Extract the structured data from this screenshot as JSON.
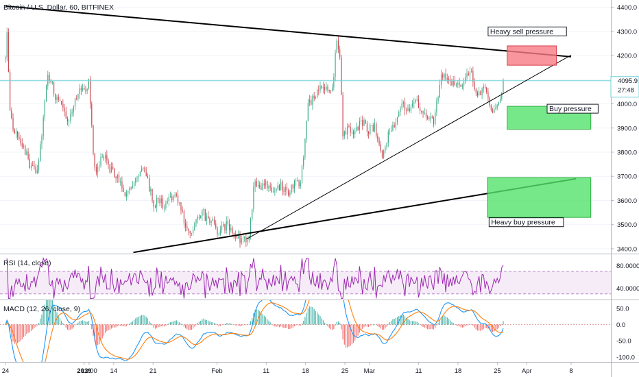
{
  "chart_data": [
    {
      "type": "candlestick",
      "title": "Bitcoin / U.S. Dollar, 60, BITFINEX",
      "ylim": [
        3380,
        4430
      ],
      "y_ticks": [
        "4400.0",
        "4300.0",
        "4200.0",
        "4100.0",
        "4000.0",
        "3900.0",
        "3800.0",
        "3700.0",
        "3600.0",
        "3500.0",
        "3400.0"
      ],
      "last_price": "4095.9",
      "countdown": "27:48",
      "colors": {
        "up": "#3fae8a",
        "down": "#c94a52",
        "last_line": "#6fd2d8",
        "trendline": "#000000"
      },
      "anchors": [
        {
          "t": 0,
          "p": 4210
        },
        {
          "t": 0.05,
          "p": 4380
        },
        {
          "t": 0.5,
          "p": 3940
        },
        {
          "t": 2.5,
          "p": 3760
        },
        {
          "t": 3.2,
          "p": 3700
        },
        {
          "t": 4.3,
          "p": 4120
        },
        {
          "t": 6.3,
          "p": 3920
        },
        {
          "t": 7.5,
          "p": 4060
        },
        {
          "t": 8.5,
          "p": 4080
        },
        {
          "t": 9.0,
          "p": 3720
        },
        {
          "t": 10.0,
          "p": 3780
        },
        {
          "t": 12.5,
          "p": 3620
        },
        {
          "t": 14.0,
          "p": 3740
        },
        {
          "t": 15.2,
          "p": 3580
        },
        {
          "t": 17.5,
          "p": 3620
        },
        {
          "t": 18.5,
          "p": 3450
        },
        {
          "t": 20.0,
          "p": 3560
        },
        {
          "t": 21.5,
          "p": 3480
        },
        {
          "t": 23.0,
          "p": 3490
        },
        {
          "t": 24.0,
          "p": 3420
        },
        {
          "t": 24.8,
          "p": 3470
        },
        {
          "t": 25.3,
          "p": 3660
        },
        {
          "t": 27.5,
          "p": 3650
        },
        {
          "t": 29.0,
          "p": 3650
        },
        {
          "t": 30.0,
          "p": 3680
        },
        {
          "t": 30.8,
          "p": 4000
        },
        {
          "t": 32.0,
          "p": 4060
        },
        {
          "t": 33.3,
          "p": 4080
        },
        {
          "t": 33.7,
          "p": 4260
        },
        {
          "t": 34.0,
          "p": 4200
        },
        {
          "t": 34.3,
          "p": 3870
        },
        {
          "t": 36.0,
          "p": 3910
        },
        {
          "t": 37.5,
          "p": 3900
        },
        {
          "t": 38.3,
          "p": 3800
        },
        {
          "t": 40.0,
          "p": 3980
        },
        {
          "t": 42.0,
          "p": 3990
        },
        {
          "t": 43.5,
          "p": 3920
        },
        {
          "t": 44.3,
          "p": 4120
        },
        {
          "t": 46.0,
          "p": 4080
        },
        {
          "t": 47.3,
          "p": 4120
        },
        {
          "t": 48.0,
          "p": 4050
        },
        {
          "t": 49.0,
          "p": 4040
        },
        {
          "t": 49.6,
          "p": 3960
        },
        {
          "t": 50.3,
          "p": 4000
        },
        {
          "t": 50.6,
          "p": 4096
        }
      ],
      "x_axis": {
        "start": "2018-12-24",
        "ticks": [
          {
            "t": 0,
            "label": "24",
            "bold": false
          },
          {
            "t": 8,
            "label": "2019",
            "bold": true
          },
          {
            "t": 8.5,
            "label": "13:00",
            "bold": false
          },
          {
            "t": 11,
            "label": "14",
            "bold": false
          },
          {
            "t": 15,
            "label": "21",
            "bold": false
          },
          {
            "t": 21.5,
            "label": "Feb",
            "bold": false
          },
          {
            "t": 26.5,
            "label": "11",
            "bold": false
          },
          {
            "t": 30.5,
            "label": "18",
            "bold": false
          },
          {
            "t": 34.5,
            "label": "25",
            "bold": false
          },
          {
            "t": 37,
            "label": "Mar",
            "bold": false
          },
          {
            "t": 42,
            "label": "11",
            "bold": false
          },
          {
            "t": 46,
            "label": "18",
            "bold": false
          },
          {
            "t": 50,
            "label": "25",
            "bold": false
          },
          {
            "t": 53,
            "label": "Apr",
            "bold": false
          },
          {
            "t": 57.5,
            "label": "8",
            "bold": false
          }
        ]
      },
      "trendlines": [
        {
          "name": "upper-resistance",
          "t1": 0,
          "p1": 4405,
          "t2": 57.5,
          "p2": 4195,
          "width": 2
        },
        {
          "name": "rising-support",
          "t1": 24.5,
          "p1": 3440,
          "t2": 57.5,
          "p2": 4202,
          "width": 1
        },
        {
          "name": "long-support",
          "t1": 13,
          "p1": 3385,
          "t2": 58,
          "p2": 3690,
          "width": 2
        }
      ],
      "zones": [
        {
          "label": "Heavy sell pressure",
          "kind": "sell",
          "t1": 51,
          "t2": 56,
          "p1": 4160,
          "p2": 4240,
          "label_t": 49.2,
          "label_p": 4290
        },
        {
          "label": "Buy pressure",
          "kind": "buy",
          "t1": 51,
          "t2": 59.5,
          "p1": 3895,
          "p2": 3990,
          "label_t": 55.2,
          "label_p": 3970
        },
        {
          "label": "Heavy buy pressure",
          "kind": "buy",
          "t1": 49,
          "t2": 59.5,
          "p1": 3530,
          "p2": 3695,
          "label_t": 49.3,
          "label_p": 3500
        }
      ]
    },
    {
      "type": "line",
      "title": "RSI (14, close)",
      "ylim": [
        20,
        100
      ],
      "y_ticks": [
        "80.0000",
        "40.0000"
      ],
      "band": [
        30,
        70
      ],
      "color": "#9c27b0"
    },
    {
      "type": "line",
      "title": "MACD (12, 26, close, 9)",
      "ylim": [
        -115,
        75
      ],
      "y_ticks": [
        "50.0",
        "0.0",
        "-50.0",
        "-100.0"
      ],
      "colors": {
        "macd": "#2196f3",
        "signal": "#ff7f0e"
      }
    }
  ]
}
